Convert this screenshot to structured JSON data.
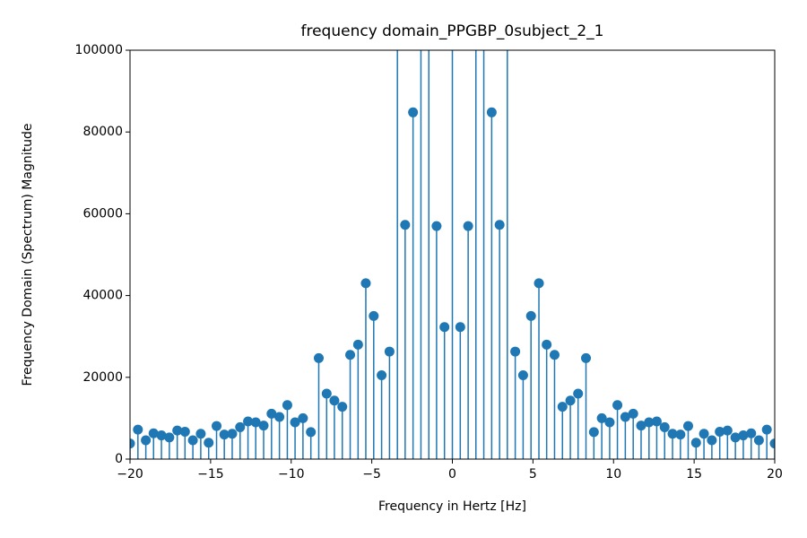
{
  "chart_data": {
    "type": "stem",
    "title": "frequency domain_PPGBP_0subject_2_1",
    "x_label": "Frequency in Hertz [Hz]",
    "y_label": "Frequency Domain (Spectrum) Magnitude",
    "color": "#1f77b4",
    "xlim": [
      -20,
      20
    ],
    "ylim": [
      0,
      100000
    ],
    "xticks": [
      {
        "value": -20,
        "label": "−20"
      },
      {
        "value": -15,
        "label": "−15"
      },
      {
        "value": -10,
        "label": "−10"
      },
      {
        "value": -5,
        "label": "−5"
      },
      0,
      5,
      10,
      15,
      20
    ],
    "yticks": [
      0,
      20000,
      40000,
      60000,
      80000,
      100000
    ],
    "x": [
      -20,
      -19.51,
      -19.02,
      -18.54,
      -18.05,
      -17.56,
      -17.07,
      -16.59,
      -16.1,
      -15.61,
      -15.12,
      -14.63,
      -14.15,
      -13.66,
      -13.17,
      -12.68,
      -12.2,
      -11.71,
      -11.22,
      -10.73,
      -10.24,
      -9.76,
      -9.27,
      -8.78,
      -8.29,
      -7.8,
      -7.32,
      -6.83,
      -6.34,
      -5.85,
      -5.37,
      -4.88,
      -4.39,
      -3.9,
      -3.41,
      -2.93,
      -2.44,
      -1.95,
      -1.46,
      -0.98,
      -0.49,
      0,
      0.49,
      0.98,
      1.46,
      1.95,
      2.44,
      2.93,
      3.41,
      3.9,
      4.39,
      4.88,
      5.37,
      5.85,
      6.34,
      6.83,
      7.32,
      7.8,
      8.29,
      8.78,
      9.27,
      9.76,
      10.24,
      10.73,
      11.22,
      11.71,
      12.2,
      12.68,
      13.17,
      13.66,
      14.15,
      14.63,
      15.12,
      15.61,
      16.1,
      16.59,
      17.07,
      17.56,
      18.05,
      18.54,
      19.02,
      19.51,
      20
    ],
    "values": [
      3800,
      7200,
      4600,
      6300,
      5800,
      5300,
      7000,
      6700,
      4600,
      6200,
      4000,
      8100,
      6000,
      6200,
      7800,
      9200,
      9000,
      8200,
      11100,
      10300,
      13200,
      9000,
      10000,
      6600,
      24700,
      16000,
      14300,
      12800,
      25500,
      28000,
      43000,
      35000,
      20500,
      26300,
      120000,
      57300,
      84800,
      120000,
      120000,
      57000,
      32300,
      120000,
      32300,
      57000,
      120000,
      120000,
      84800,
      57300,
      120000,
      26300,
      20500,
      35000,
      43000,
      28000,
      25500,
      12800,
      14300,
      16000,
      24700,
      6600,
      10000,
      9000,
      13200,
      10300,
      11100,
      8200,
      9000,
      9200,
      7800,
      6200,
      6000,
      8100,
      4000,
      6200,
      4600,
      6700,
      7000,
      5300,
      5800,
      6300,
      4600,
      7200,
      3800
    ]
  }
}
